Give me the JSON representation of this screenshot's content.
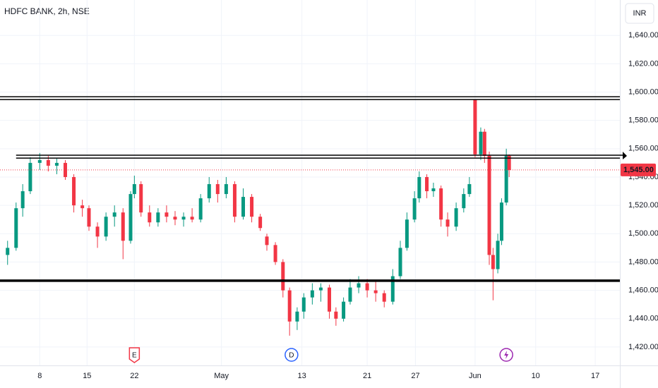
{
  "chart_data": {
    "type": "candlestick",
    "title": "HDFC BANK, 2h, NSE",
    "currency": "INR",
    "up_color": "#089981",
    "down_color": "#f23645",
    "grid": true,
    "x": [
      -3.4,
      -2.5,
      -1.8,
      -1.0,
      0,
      0.9,
      1.8,
      2.7,
      3.6,
      4.5,
      5.2,
      6.1,
      7.0,
      7.9,
      8.8,
      9.6,
      10,
      10.7,
      11.6,
      12.5,
      13.4,
      14.3,
      15.2,
      16.1,
      17.0,
      17.9,
      18.8,
      19.7,
      20.6,
      21.5,
      22.4,
      23.3,
      24.0,
      24.9,
      25.7,
      26.4,
      27.2,
      27.9,
      28.8,
      29.7,
      30.6,
      31.3,
      32.1,
      32.8,
      33.7,
      34.6,
      35.5,
      36.4,
      37.3,
      38.1,
      38.8,
      39.6,
      40.1,
      40.9,
      41.6,
      42.4,
      43.1,
      44.0,
      44.8,
      45.4,
      46.0,
      46.6,
      47.0,
      47.5,
      47.9,
      48.4,
      48.8,
      49.3,
      49.6
    ],
    "open": [
      1485,
      1490,
      1518,
      1530,
      1550,
      1552,
      1548,
      1550,
      1540,
      1520,
      1518,
      1505,
      1498,
      1512,
      1515,
      1495,
      1528,
      1535,
      1515,
      1508,
      1515,
      1512,
      1510,
      1512,
      1510,
      1525,
      1535,
      1528,
      1535,
      1512,
      1526,
      1512,
      1498,
      1492,
      1480,
      1460,
      1438,
      1445,
      1455,
      1460,
      1462,
      1445,
      1440,
      1452,
      1462,
      1465,
      1460,
      1458,
      1452,
      1470,
      1490,
      1510,
      1525,
      1540,
      1530,
      1532,
      1510,
      1505,
      1518,
      1528,
      1595,
      1556,
      1572,
      1555,
      1485,
      1475,
      1495,
      1522,
      1555
    ],
    "high": [
      1495,
      1522,
      1535,
      1554,
      1557,
      1555,
      1553,
      1552,
      1542,
      1524,
      1520,
      1508,
      1515,
      1520,
      1518,
      1530,
      1541,
      1537,
      1520,
      1518,
      1520,
      1516,
      1515,
      1518,
      1528,
      1540,
      1538,
      1540,
      1537,
      1532,
      1528,
      1514,
      1500,
      1494,
      1482,
      1462,
      1448,
      1458,
      1465,
      1465,
      1464,
      1448,
      1455,
      1468,
      1470,
      1468,
      1466,
      1460,
      1475,
      1495,
      1515,
      1530,
      1544,
      1542,
      1536,
      1534,
      1515,
      1522,
      1532,
      1540,
      1595,
      1575,
      1574,
      1558,
      1490,
      1500,
      1525,
      1560,
      1556
    ],
    "low": [
      1478,
      1488,
      1512,
      1528,
      1545,
      1544,
      1542,
      1538,
      1515,
      1512,
      1502,
      1490,
      1495,
      1505,
      1482,
      1493,
      1525,
      1512,
      1505,
      1505,
      1508,
      1506,
      1505,
      1508,
      1508,
      1522,
      1522,
      1525,
      1508,
      1510,
      1508,
      1502,
      1488,
      1478,
      1455,
      1428,
      1432,
      1440,
      1450,
      1452,
      1440,
      1435,
      1438,
      1450,
      1458,
      1455,
      1452,
      1448,
      1450,
      1468,
      1488,
      1508,
      1522,
      1525,
      1526,
      1505,
      1498,
      1502,
      1515,
      1526,
      1554,
      1552,
      1550,
      1478,
      1453,
      1472,
      1492,
      1520,
      1540
    ],
    "close": [
      1490,
      1518,
      1530,
      1550,
      1552,
      1548,
      1550,
      1540,
      1520,
      1518,
      1505,
      1498,
      1512,
      1515,
      1495,
      1528,
      1535,
      1515,
      1508,
      1515,
      1512,
      1510,
      1512,
      1510,
      1525,
      1535,
      1528,
      1535,
      1512,
      1526,
      1512,
      1504,
      1492,
      1480,
      1460,
      1438,
      1445,
      1455,
      1460,
      1462,
      1445,
      1440,
      1452,
      1462,
      1465,
      1460,
      1458,
      1452,
      1470,
      1490,
      1510,
      1525,
      1540,
      1530,
      1532,
      1510,
      1505,
      1518,
      1528,
      1535,
      1556,
      1572,
      1555,
      1485,
      1475,
      1495,
      1522,
      1555,
      1545
    ],
    "xlim": [
      -4.2,
      61.3
    ],
    "xticks": [
      {
        "value": 0,
        "label": "8"
      },
      {
        "value": 5,
        "label": "15"
      },
      {
        "value": 10,
        "label": "22"
      },
      {
        "value": 19.2,
        "label": "May"
      },
      {
        "value": 27.7,
        "label": "13"
      },
      {
        "value": 34.6,
        "label": "21"
      },
      {
        "value": 39.7,
        "label": "27"
      },
      {
        "value": 46.0,
        "label": "Jun"
      },
      {
        "value": 52.4,
        "label": "10"
      },
      {
        "value": 58.7,
        "label": "17"
      }
    ],
    "ylim": [
      1407,
      1665
    ],
    "yticks": [
      {
        "value": 1420,
        "label": "1,420.00"
      },
      {
        "value": 1440,
        "label": "1,440.00"
      },
      {
        "value": 1460,
        "label": "1,460.00"
      },
      {
        "value": 1480,
        "label": "1,480.00"
      },
      {
        "value": 1500,
        "label": "1,500.00"
      },
      {
        "value": 1520,
        "label": "1,520.00"
      },
      {
        "value": 1540,
        "label": "1,540.00"
      },
      {
        "value": 1560,
        "label": "1,560.00"
      },
      {
        "value": 1580,
        "label": "1,580.00"
      },
      {
        "value": 1600,
        "label": "1,600.00"
      },
      {
        "value": 1620,
        "label": "1,620.00"
      },
      {
        "value": 1640,
        "label": "1,640.00"
      }
    ],
    "last_price": 1545,
    "last_price_label": "1,545.00",
    "hlines": [
      {
        "value": 1596.7,
        "style": "thin"
      },
      {
        "value": 1594.7,
        "style": "thin"
      },
      {
        "value": 1555.4,
        "style": "thin",
        "x_start": -2.5,
        "arrow": true
      },
      {
        "value": 1553.4,
        "style": "thin",
        "x_start": -2.5
      },
      {
        "value": 1466.8,
        "style": "thick"
      }
    ],
    "events": [
      {
        "label": "E",
        "x": 10,
        "color": "#f23645"
      },
      {
        "label": "D",
        "x": 26.6,
        "color": "#2962ff"
      },
      {
        "icon": "lightning",
        "x": 49.3,
        "color": "#9c27b0"
      }
    ]
  }
}
